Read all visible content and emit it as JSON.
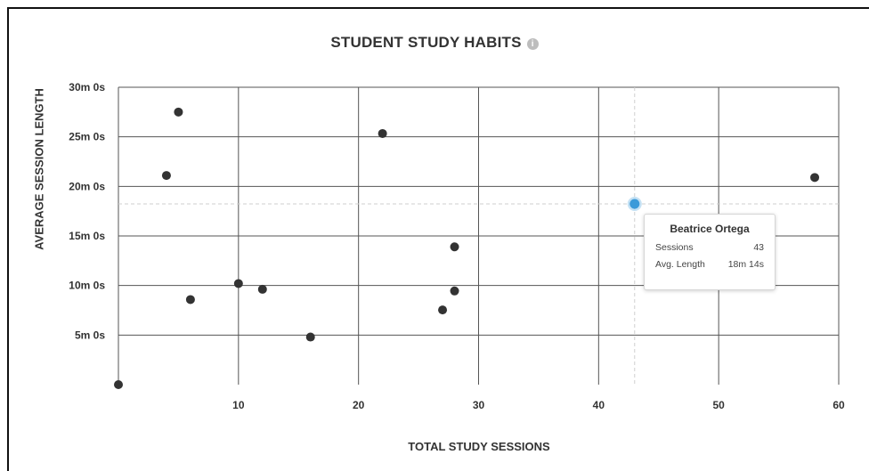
{
  "chart_data": {
    "type": "scatter",
    "title": "STUDENT STUDY HABITS",
    "title_icon": "info-icon",
    "xlabel": "TOTAL STUDY SESSIONS",
    "ylabel": "AVERAGE SESSION LENGTH",
    "xlim": [
      0,
      60
    ],
    "ylim": [
      0,
      1800
    ],
    "y_units": "seconds",
    "xticks": [
      10,
      20,
      30,
      40,
      50,
      60
    ],
    "yticks": [
      300,
      600,
      900,
      1200,
      1500,
      1800
    ],
    "ytick_labels": [
      "5m 0s",
      "10m 0s",
      "15m 0s",
      "20m 0s",
      "25m 0s",
      "30m 0s"
    ],
    "grid": true,
    "point_color": "#333333",
    "highlight_color": "#3a9ad9",
    "points": [
      {
        "x": 0,
        "y": 0
      },
      {
        "x": 4,
        "y": 1266
      },
      {
        "x": 5,
        "y": 1650
      },
      {
        "x": 6,
        "y": 515
      },
      {
        "x": 10,
        "y": 612
      },
      {
        "x": 12,
        "y": 577
      },
      {
        "x": 16,
        "y": 288
      },
      {
        "x": 22,
        "y": 1520
      },
      {
        "x": 27,
        "y": 452
      },
      {
        "x": 28,
        "y": 834
      },
      {
        "x": 28,
        "y": 567
      },
      {
        "x": 58,
        "y": 1254
      }
    ],
    "highlighted": {
      "x": 43,
      "y": 1094
    }
  },
  "tooltip": {
    "name": "Beatrice Ortega",
    "sessions_label": "Sessions",
    "sessions_value": "43",
    "length_label": "Avg. Length",
    "length_value": "18m 14s"
  }
}
